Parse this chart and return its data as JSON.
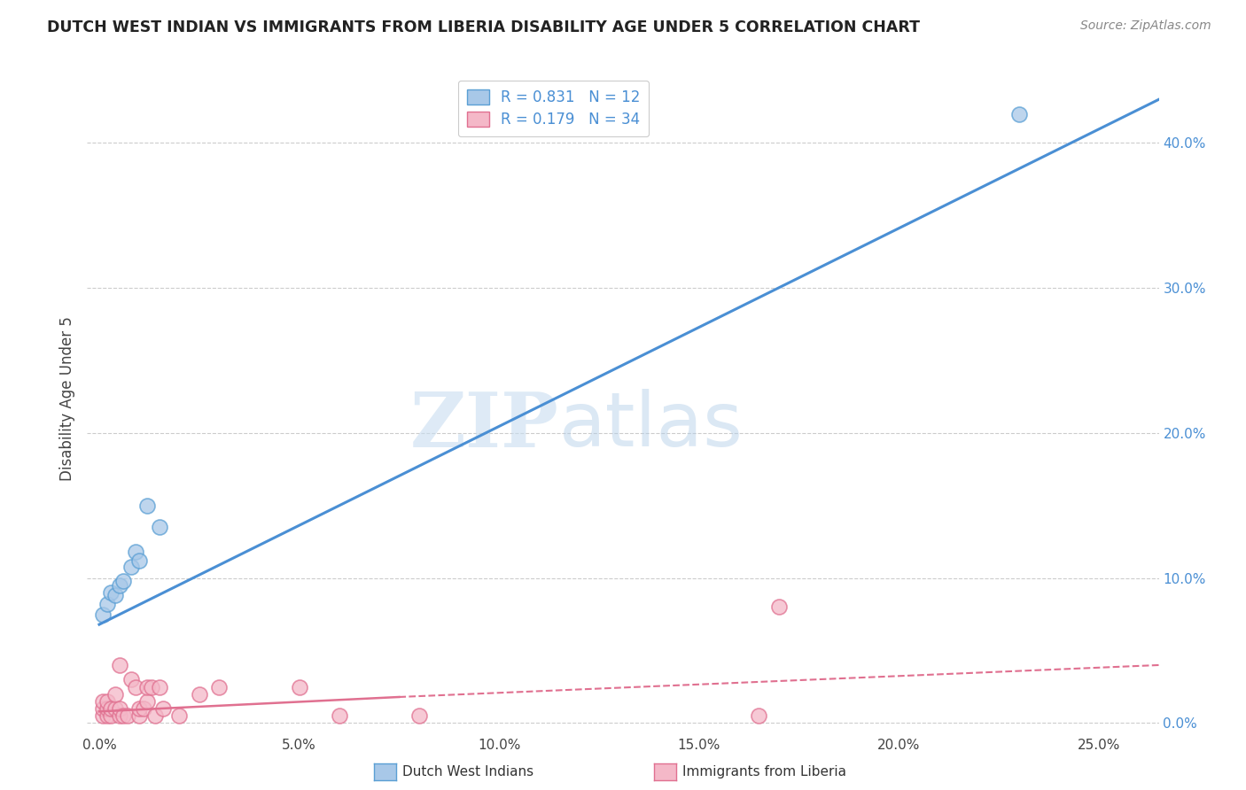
{
  "title": "DUTCH WEST INDIAN VS IMMIGRANTS FROM LIBERIA DISABILITY AGE UNDER 5 CORRELATION CHART",
  "source": "Source: ZipAtlas.com",
  "ylabel": "Disability Age Under 5",
  "x_ticks": [
    0.0,
    0.05,
    0.1,
    0.15,
    0.2,
    0.25
  ],
  "x_tick_labels": [
    "0.0%",
    "5.0%",
    "10.0%",
    "15.0%",
    "20.0%",
    "25.0%"
  ],
  "y_ticks_right": [
    0.0,
    0.1,
    0.2,
    0.3,
    0.4
  ],
  "y_tick_labels_right": [
    "0.0%",
    "10.0%",
    "20.0%",
    "30.0%",
    "40.0%"
  ],
  "xlim": [
    -0.003,
    0.265
  ],
  "ylim": [
    -0.008,
    0.455
  ],
  "blue_color": "#a8c8e8",
  "pink_color": "#f4b8c8",
  "blue_edge_color": "#5a9fd4",
  "pink_edge_color": "#e07090",
  "blue_line_color": "#4a8fd4",
  "pink_line_color": "#e07090",
  "blue_scatter_x": [
    0.001,
    0.002,
    0.003,
    0.004,
    0.005,
    0.006,
    0.008,
    0.009,
    0.01,
    0.012,
    0.015,
    0.23
  ],
  "blue_scatter_y": [
    0.075,
    0.082,
    0.09,
    0.088,
    0.095,
    0.098,
    0.108,
    0.118,
    0.112,
    0.15,
    0.135,
    0.42
  ],
  "pink_scatter_x": [
    0.001,
    0.001,
    0.001,
    0.002,
    0.002,
    0.002,
    0.003,
    0.003,
    0.004,
    0.004,
    0.005,
    0.005,
    0.005,
    0.006,
    0.007,
    0.008,
    0.009,
    0.01,
    0.01,
    0.011,
    0.012,
    0.012,
    0.013,
    0.014,
    0.015,
    0.016,
    0.02,
    0.025,
    0.03,
    0.05,
    0.06,
    0.08,
    0.165,
    0.17
  ],
  "pink_scatter_y": [
    0.005,
    0.01,
    0.015,
    0.005,
    0.01,
    0.015,
    0.005,
    0.01,
    0.01,
    0.02,
    0.005,
    0.01,
    0.04,
    0.005,
    0.005,
    0.03,
    0.025,
    0.005,
    0.01,
    0.01,
    0.015,
    0.025,
    0.025,
    0.005,
    0.025,
    0.01,
    0.005,
    0.02,
    0.025,
    0.025,
    0.005,
    0.005,
    0.005,
    0.08
  ],
  "blue_R": 0.831,
  "blue_N": 12,
  "pink_R": 0.179,
  "pink_N": 34,
  "legend_label_blue": "Dutch West Indians",
  "legend_label_pink": "Immigrants from Liberia",
  "watermark_zip": "ZIP",
  "watermark_atlas": "atlas",
  "background_color": "#ffffff",
  "grid_color": "#cccccc"
}
